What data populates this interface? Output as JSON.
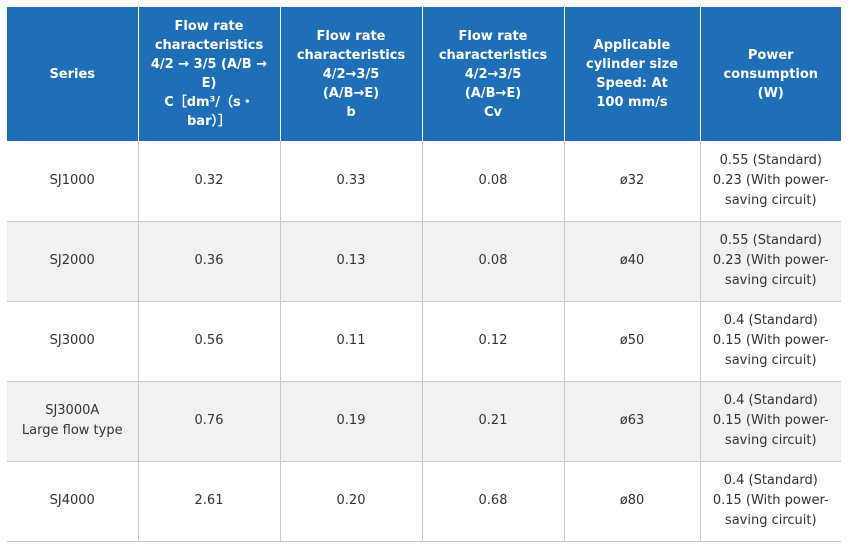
{
  "headers": [
    {
      "lines": [
        "Series"
      ]
    },
    {
      "lines": [
        "Flow rate",
        "characteristics",
        "4/2 → 3/5 (A/B →",
        "E)",
        "C［dm³/（s・",
        "bar）］"
      ]
    },
    {
      "lines": [
        "Flow rate",
        "characteristics",
        "4/2→3/5",
        "(A/B→E)",
        "b"
      ]
    },
    {
      "lines": [
        "Flow rate",
        "characteristics",
        "4/2→3/5",
        "(A/B→E)",
        "Cv"
      ]
    },
    {
      "lines": [
        "Applicable",
        "cylinder size",
        "Speed: At",
        "100 mm/s"
      ]
    },
    {
      "lines": [
        "Power",
        "consumption",
        "(W)"
      ]
    }
  ],
  "rows": [
    {
      "series": [
        "SJ1000"
      ],
      "c": "0.32",
      "b": "0.33",
      "cv": "0.08",
      "cyl": "ø32",
      "power": [
        "0.55 (Standard)",
        "0.23 (With power-",
        "saving circuit)"
      ]
    },
    {
      "series": [
        "SJ2000"
      ],
      "c": "0.36",
      "b": "0.13",
      "cv": "0.08",
      "cyl": "ø40",
      "power": [
        "0.55 (Standard)",
        "0.23 (With power-",
        "saving circuit)"
      ]
    },
    {
      "series": [
        "SJ3000"
      ],
      "c": "0.56",
      "b": "0.11",
      "cv": "0.12",
      "cyl": "ø50",
      "power": [
        "0.4 (Standard)",
        "0.15 (With power-",
        "saving circuit)"
      ]
    },
    {
      "series": [
        "SJ3000A",
        "Large flow type"
      ],
      "c": "0.76",
      "b": "0.19",
      "cv": "0.21",
      "cyl": "ø63",
      "power": [
        "0.4 (Standard)",
        "0.15 (With power-",
        "saving circuit)"
      ]
    },
    {
      "series": [
        "SJ4000"
      ],
      "c": "2.61",
      "b": "0.20",
      "cv": "0.68",
      "cyl": "ø80",
      "power": [
        "0.4 (Standard)",
        "0.15 (With power-",
        "saving circuit)"
      ]
    }
  ],
  "colors": {
    "header_bg": "#1f6fb8",
    "alt_row_bg": "#f2f2f2",
    "border": "#c8c8c8"
  }
}
